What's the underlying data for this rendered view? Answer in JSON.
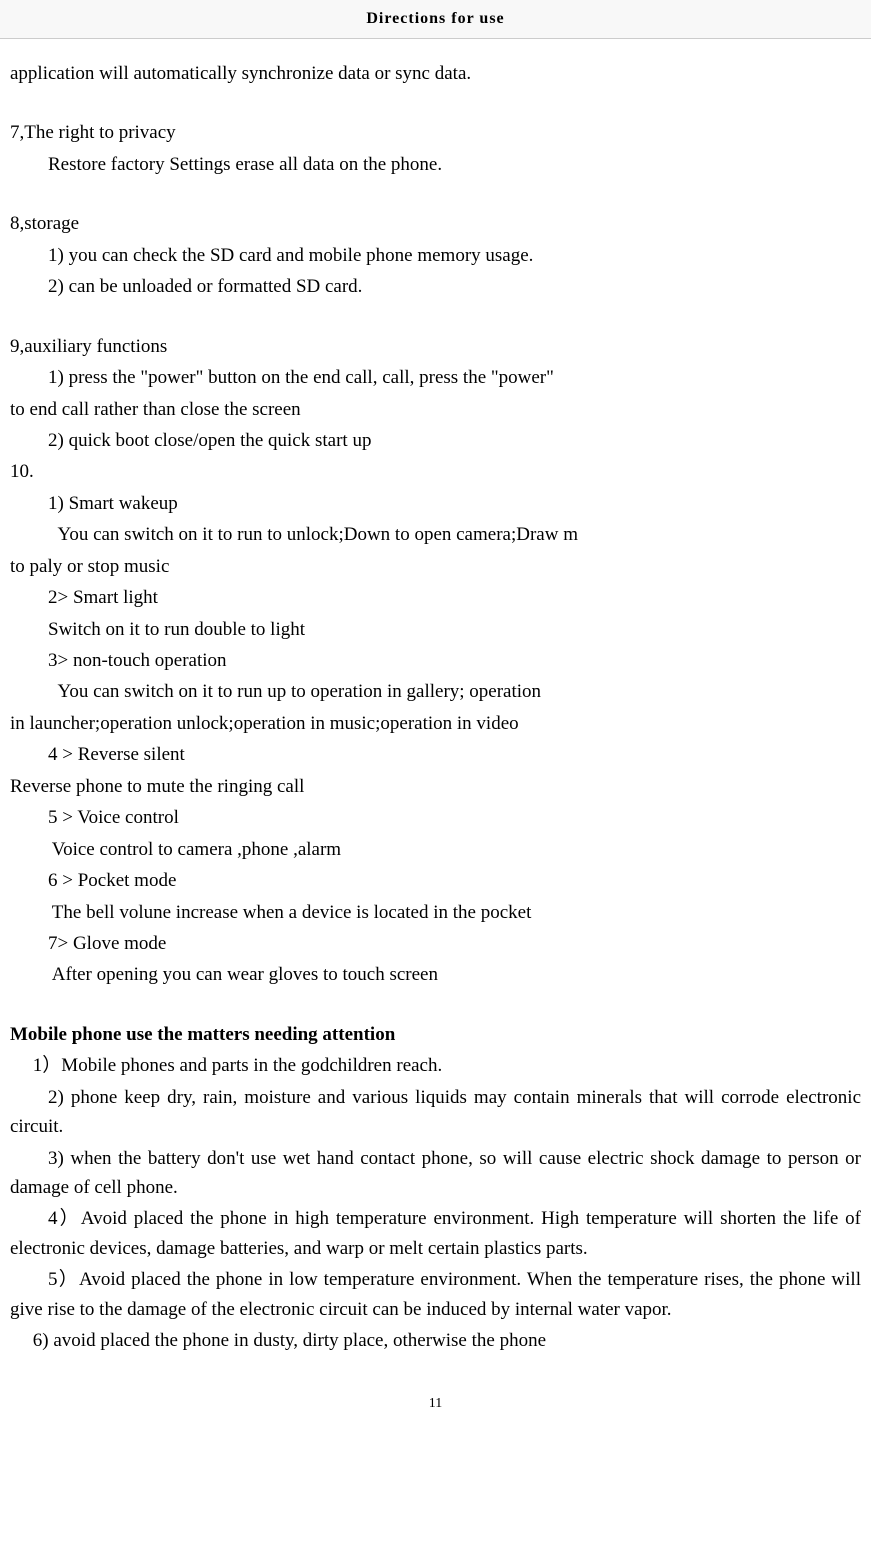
{
  "header": {
    "title": "Directions for use"
  },
  "content": {
    "intro": "application will automatically synchronize data or sync data.",
    "s7": {
      "heading": "7,The right to privacy",
      "line1": "Restore factory Settings erase all data on the phone."
    },
    "s8": {
      "heading": "8,storage",
      "line1": "1) you can check the SD card and mobile phone memory usage.",
      "line2": "2) can be unloaded or formatted SD card."
    },
    "s9": {
      "heading": "9,auxiliary functions",
      "line1a": "1) press the \"power\" button on the end call, call, press the \"power\"",
      "line1b": "to end call rather than close the screen",
      "line2": "2) quick boot close/open the quick start up"
    },
    "s10": {
      "heading": "10.",
      "item1_title": "1) Smart wakeup",
      "item1_body_a": "You can switch on  it to run  to unlock;Down to open camera;Draw m",
      "item1_body_b": "to paly or stop music",
      "item2_title": "2> Smart light",
      "item2_body": "Switch on  it to run  double to light",
      "item3_title": "3> non-touch operation",
      "item3_body_a": "You can switch on  it to run up to operation in gallery; operation",
      "item3_body_b": "in launcher;operation unlock;operation in music;operation in video",
      "item4_title": "4 > Reverse silent",
      "item4_body": "Reverse phone to mute the ringing call",
      "item5_title": "5 > Voice control",
      "item5_body": "Voice control to camera ,phone ,alarm",
      "item6_title": "6 > Pocket mode",
      "item6_body": "The bell volune increase when a device is located in the pocket",
      "item7_title": "7>  Glove mode",
      "item7_body": "After opening you can wear gloves to touch screen"
    },
    "matters": {
      "heading": "Mobile phone use the matters needing attention",
      "item1": "1）Mobile phones and parts in the godchildren reach.",
      "item2": "2) phone keep dry, rain, moisture and various liquids may contain minerals that will corrode electronic circuit.",
      "item3": "3) when the battery don't use wet hand contact phone, so will cause electric shock damage to person or damage of cell phone.",
      "item4": "4）Avoid placed the phone in high temperature environment. High temperature will shorten the life of electronic devices, damage batteries, and warp or melt certain plastics parts.",
      "item5": "5）Avoid placed the phone in low temperature environment. When the temperature rises, the phone will give rise to the damage of the electronic circuit can be induced by internal water vapor.",
      "item6": "6) avoid placed the phone in dusty, dirty place, otherwise the phone"
    }
  },
  "footer": {
    "page_number": "11"
  }
}
